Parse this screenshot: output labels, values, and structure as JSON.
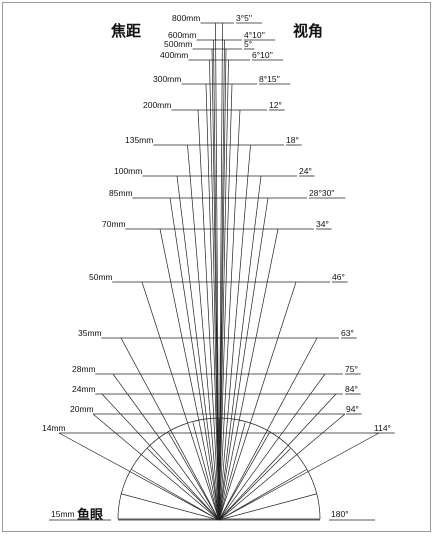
{
  "header": {
    "focal_title": "焦距",
    "angle_title": "视角"
  },
  "lenses": [
    {
      "focal": "800mm",
      "angle": "3°5''"
    },
    {
      "focal": "600mm",
      "angle": "4°10''"
    },
    {
      "focal": "500mm",
      "angle": "5°"
    },
    {
      "focal": "400mm",
      "angle": "6°10''"
    },
    {
      "focal": "300mm",
      "angle": "8°15''"
    },
    {
      "focal": "200mm",
      "angle": "12°"
    },
    {
      "focal": "135mm",
      "angle": "18°"
    },
    {
      "focal": "100mm",
      "angle": "24°"
    },
    {
      "focal": "85mm",
      "angle": "28°30''"
    },
    {
      "focal": "70mm",
      "angle": "34°"
    },
    {
      "focal": "50mm",
      "angle": "46°"
    },
    {
      "focal": "35mm",
      "angle": "63°"
    },
    {
      "focal": "28mm",
      "angle": "75°"
    },
    {
      "focal": "24mm",
      "angle": "84°"
    },
    {
      "focal": "20mm",
      "angle": "94°"
    },
    {
      "focal": "14mm",
      "angle": "114°"
    }
  ],
  "fisheye": {
    "focal": "15mm",
    "name": "鱼眼",
    "angle": "180°"
  }
}
